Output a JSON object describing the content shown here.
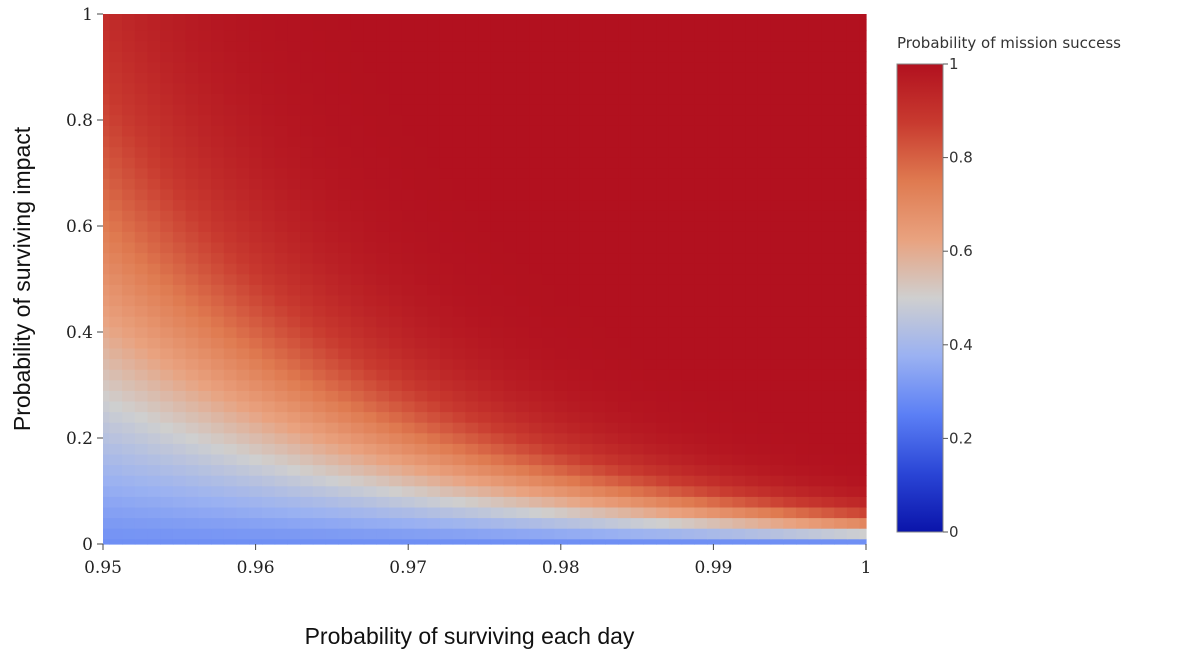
{
  "chart_data": {
    "type": "heatmap",
    "title": "",
    "xlabel": "Probability of surviving each day",
    "ylabel": "Probability of surviving impact",
    "xlim": [
      0.95,
      1.0
    ],
    "ylim": [
      0,
      1
    ],
    "x_ticks": [
      "0.95",
      "0.96",
      "0.97",
      "0.98",
      "0.99",
      "1"
    ],
    "x_tick_values": [
      0.95,
      0.96,
      0.97,
      0.98,
      0.99,
      1.0
    ],
    "y_ticks": [
      "0",
      "0.2",
      "0.4",
      "0.6",
      "0.8",
      "1"
    ],
    "y_tick_values": [
      0,
      0.2,
      0.4,
      0.6,
      0.8,
      1.0
    ],
    "grid": false,
    "grid_size": {
      "x_cells": 61,
      "y_cells": 51
    },
    "z_formula": "sigmoid(45 * (x^51 * y - 0.02))",
    "colorscale": [
      "#0a14aa",
      "#2a45d6",
      "#5b7ff5",
      "#9ab1f2",
      "#cfcfcf",
      "#e9a27f",
      "#df7a50",
      "#c83a2f",
      "#b2111f"
    ],
    "colorbar": {
      "title": "Probability of mission success",
      "ticks": [
        "0",
        "0.2",
        "0.4",
        "0.6",
        "0.8",
        "1"
      ],
      "tick_values": [
        0,
        0.2,
        0.4,
        0.6,
        0.8,
        1.0
      ],
      "range": [
        0,
        1
      ]
    }
  }
}
